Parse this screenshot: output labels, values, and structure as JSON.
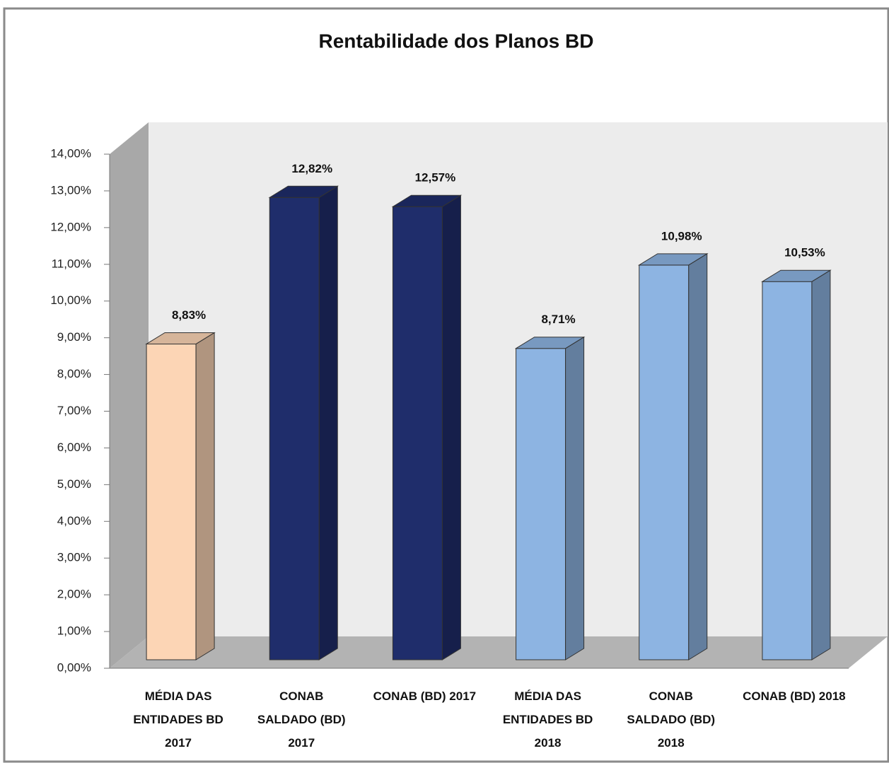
{
  "chart_data": {
    "type": "bar3d",
    "title": "Rentabilidade dos Planos BD",
    "categories": [
      "MÉDIA DAS ENTIDADES BD 2017",
      "CONAB SALDADO (BD) 2017",
      "CONAB (BD) 2017",
      "MÉDIA DAS ENTIDADES BD 2018",
      "CONAB SALDADO (BD) 2018",
      "CONAB (BD) 2018"
    ],
    "values": [
      8.83,
      12.82,
      12.57,
      8.71,
      10.98,
      10.53
    ],
    "value_labels": [
      "8,83%",
      "12,82%",
      "12,57%",
      "8,71%",
      "10,98%",
      "10,53%"
    ],
    "colors": [
      "#fcd5b5",
      "#1f2d6b",
      "#1f2d6b",
      "#8db4e2",
      "#8db4e2",
      "#8db4e2"
    ],
    "ylim": [
      0,
      14
    ],
    "yticks": [
      {
        "value": 0,
        "label": "0,00%"
      },
      {
        "value": 1,
        "label": "1,00%"
      },
      {
        "value": 2,
        "label": "2,00%"
      },
      {
        "value": 3,
        "label": "3,00%"
      },
      {
        "value": 4,
        "label": "4,00%"
      },
      {
        "value": 5,
        "label": "5,00%"
      },
      {
        "value": 6,
        "label": "6,00%"
      },
      {
        "value": 7,
        "label": "7,00%"
      },
      {
        "value": 8,
        "label": "8,00%"
      },
      {
        "value": 9,
        "label": "9,00%"
      },
      {
        "value": 10,
        "label": "10,00%"
      },
      {
        "value": 11,
        "label": "11,00%"
      },
      {
        "value": 12,
        "label": "12,00%"
      },
      {
        "value": 13,
        "label": "13,00%"
      },
      {
        "value": 14,
        "label": "14,00%"
      }
    ],
    "grid": false
  }
}
